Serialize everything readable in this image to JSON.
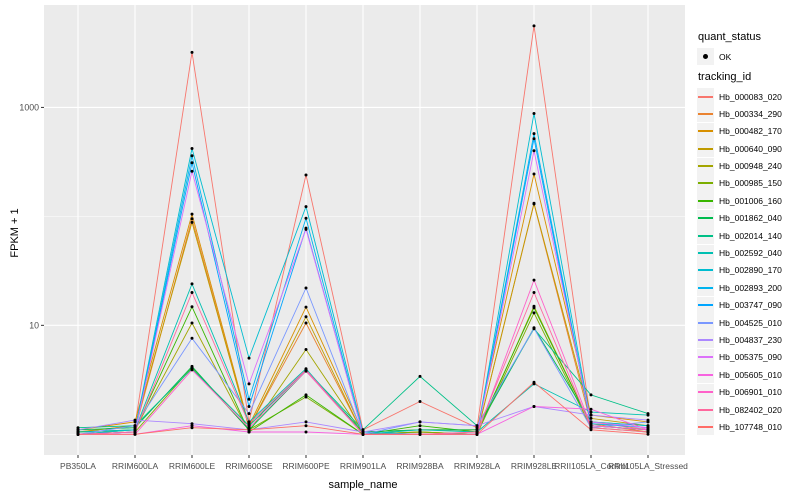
{
  "chart_data": {
    "type": "line",
    "title": "",
    "xlabel": "sample_name",
    "ylabel": "FPKM + 1",
    "y_scale": "log10",
    "y_axis_ticks": [
      {
        "value": 1000,
        "label": "1000"
      },
      {
        "value": 10,
        "label": "10"
      }
    ],
    "y_minor_gridlines": [
      1,
      100
    ],
    "ylim_log10": [
      -0.19,
      3.94
    ],
    "grid": true,
    "legend_position": "right",
    "categories": [
      "PB350LA",
      "RRIM600LA",
      "RRIM600LE",
      "RRIM600SE",
      "RRIM600PE",
      "RRIM901LA",
      "RRIM928BA",
      "RRIM928LA",
      "RRIM928LE",
      "RRII105LA_Control",
      "RRII105LA_Stressed"
    ],
    "series": [
      {
        "name": "Hb_000083_020",
        "color": "#F8766D",
        "values": [
          1.05,
          1.2,
          3200,
          1.3,
          240,
          1.1,
          2.0,
          1.15,
          5600,
          1.3,
          1.1
        ]
      },
      {
        "name": "Hb_000334_290",
        "color": "#EA8331",
        "values": [
          1.0,
          1.1,
          95,
          1.15,
          10.5,
          1.0,
          1.05,
          1.0,
          130,
          1.25,
          1.05
        ]
      },
      {
        "name": "Hb_000482_170",
        "color": "#D89000",
        "values": [
          1.1,
          1.3,
          105,
          1.2,
          14.7,
          1.05,
          1.1,
          1.1,
          245,
          1.5,
          1.3
        ]
      },
      {
        "name": "Hb_000640_090",
        "color": "#C09B00",
        "values": [
          1.05,
          1.2,
          88,
          1.15,
          12,
          1.0,
          1.05,
          1.0,
          132,
          1.4,
          1.2
        ]
      },
      {
        "name": "Hb_000948_240",
        "color": "#A3A500",
        "values": [
          1.0,
          1.1,
          10.5,
          1.05,
          6.0,
          1.0,
          1.0,
          1.0,
          15,
          1.2,
          1.1
        ]
      },
      {
        "name": "Hb_000985_150",
        "color": "#7CAE00",
        "values": [
          1.0,
          1.05,
          4.1,
          1.1,
          2.2,
          1.0,
          1.05,
          1.0,
          13,
          1.15,
          1.05
        ]
      },
      {
        "name": "Hb_001006_160",
        "color": "#39B600",
        "values": [
          1.05,
          1.1,
          14.8,
          1.05,
          2.3,
          1.0,
          1.2,
          1.05,
          14.5,
          1.2,
          1.1
        ]
      },
      {
        "name": "Hb_001862_040",
        "color": "#00BB4E",
        "values": [
          1.1,
          1.15,
          4.2,
          1.1,
          3.8,
          1.05,
          1.1,
          1.1,
          9.5,
          1.3,
          1.2
        ]
      },
      {
        "name": "Hb_002014_140",
        "color": "#00C087",
        "values": [
          1.15,
          1.2,
          4.0,
          1.2,
          3.9,
          1.1,
          3.4,
          1.2,
          9.3,
          2.3,
          1.55
        ]
      },
      {
        "name": "Hb_002592_040",
        "color": "#00C0B2",
        "values": [
          1.05,
          1.1,
          24,
          1.3,
          4.0,
          1.0,
          1.1,
          1.05,
          2.9,
          1.6,
          1.5
        ]
      },
      {
        "name": "Hb_002890_170",
        "color": "#00BDD0",
        "values": [
          1.0,
          1.1,
          420,
          5.0,
          123,
          1.05,
          1.0,
          1.0,
          880,
          1.3,
          1.2
        ]
      },
      {
        "name": "Hb_002893_200",
        "color": "#00B4EF",
        "values": [
          1.0,
          1.05,
          360,
          2.1,
          96,
          1.0,
          1.0,
          1.0,
          575,
          1.25,
          1.15
        ]
      },
      {
        "name": "Hb_003747_090",
        "color": "#00A5FF",
        "values": [
          1.0,
          1.05,
          310,
          1.8,
          78,
          1.0,
          1.0,
          1.0,
          515,
          1.2,
          1.1
        ]
      },
      {
        "name": "Hb_004525_010",
        "color": "#7997FF",
        "values": [
          1.0,
          1.2,
          7.6,
          1.55,
          22,
          1.0,
          1.3,
          1.2,
          9.4,
          1.15,
          1.3
        ]
      },
      {
        "name": "Hb_004837_230",
        "color": "#AC88FF",
        "values": [
          1.1,
          1.35,
          1.25,
          1.1,
          1.3,
          1.05,
          1.3,
          1.2,
          1.8,
          1.5,
          1.35
        ]
      },
      {
        "name": "Hb_005375_090",
        "color": "#DC71FA",
        "values": [
          1.0,
          1.05,
          260,
          2.9,
          76,
          1.0,
          1.0,
          1.0,
          400,
          1.3,
          1.15
        ]
      },
      {
        "name": "Hb_005605_010",
        "color": "#F763E0",
        "values": [
          1.0,
          1.0,
          1.2,
          1.05,
          1.05,
          1.0,
          1.0,
          1.0,
          1.8,
          1.7,
          1.1
        ]
      },
      {
        "name": "Hb_006901_010",
        "color": "#FF61C9",
        "values": [
          1.0,
          1.0,
          3.9,
          1.15,
          3.8,
          1.0,
          1.0,
          1.0,
          26,
          1.2,
          1.1
        ]
      },
      {
        "name": "Hb_082402_020",
        "color": "#FF689E",
        "values": [
          1.0,
          1.05,
          20,
          1.25,
          3.9,
          1.0,
          1.0,
          1.05,
          20,
          1.15,
          1.05
        ]
      },
      {
        "name": "Hb_107748_010",
        "color": "#FF6C67",
        "values": [
          1.0,
          1.0,
          1.15,
          1.1,
          1.2,
          1.0,
          1.0,
          1.0,
          3.0,
          1.1,
          1.0
        ]
      }
    ]
  },
  "legend": {
    "quant_title": "quant_status",
    "quant_items": [
      {
        "label": "OK",
        "marker": "point"
      }
    ],
    "tracking_title": "tracking_id"
  },
  "theme": {
    "panel_bg": "#EBEBEB",
    "grid_color": "#FFFFFF",
    "tick_text_color": "#4D4D4D",
    "tick_mark_color": "#333333",
    "point_color": "#000000",
    "legend_key_bg": "#F2F2F2"
  }
}
